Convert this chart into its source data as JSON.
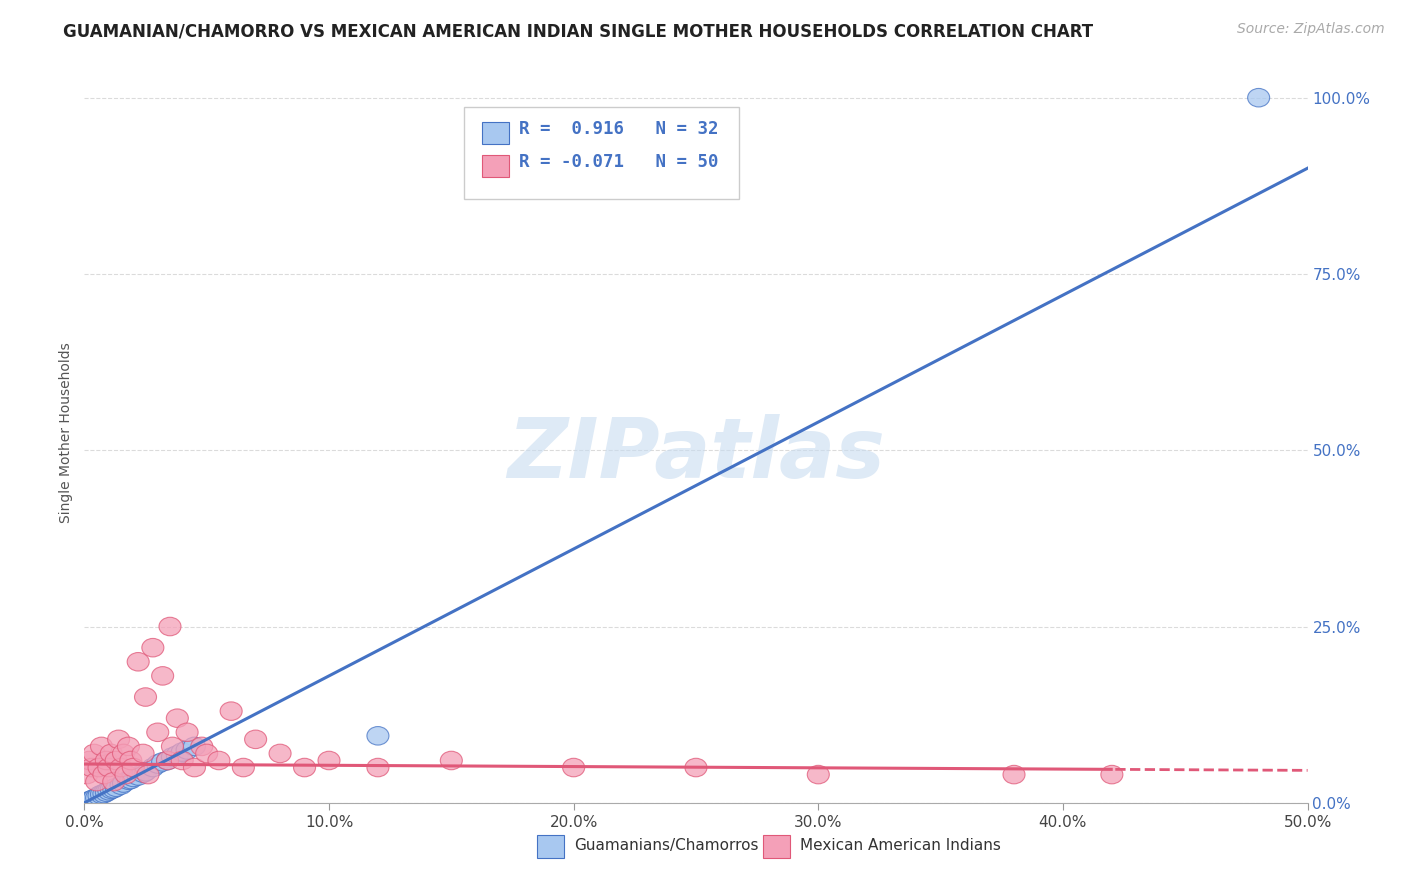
{
  "title": "GUAMANIAN/CHAMORRO VS MEXICAN AMERICAN INDIAN SINGLE MOTHER HOUSEHOLDS CORRELATION CHART",
  "source": "Source: ZipAtlas.com",
  "ylabel": "Single Mother Households",
  "x_min": 0.0,
  "x_max": 0.5,
  "y_min": 0.0,
  "y_max": 1.05,
  "x_ticks": [
    0.0,
    0.1,
    0.2,
    0.3,
    0.4,
    0.5
  ],
  "x_tick_labels": [
    "0.0%",
    "10.0%",
    "20.0%",
    "30.0%",
    "40.0%",
    "50.0%"
  ],
  "y_ticks_right": [
    0.0,
    0.25,
    0.5,
    0.75,
    1.0
  ],
  "y_tick_labels_right": [
    "0.0%",
    "25.0%",
    "50.0%",
    "75.0%",
    "100.0%"
  ],
  "legend_line1": "R =  0.916   N = 32",
  "legend_line2": "R = -0.071   N = 50",
  "blue_color": "#A8C8F0",
  "pink_color": "#F4A0B8",
  "blue_line_color": "#4472C4",
  "pink_line_color": "#E05878",
  "watermark": "ZIPatlas",
  "label1": "Guamanians/Chamorros",
  "label2": "Mexican American Indians",
  "blue_slope": 1.8,
  "blue_intercept": 0.0,
  "pink_slope": -0.018,
  "pink_intercept": 0.055,
  "blue_points_x": [
    0.001,
    0.002,
    0.003,
    0.004,
    0.005,
    0.006,
    0.007,
    0.008,
    0.009,
    0.01,
    0.011,
    0.012,
    0.013,
    0.015,
    0.016,
    0.018,
    0.019,
    0.02,
    0.022,
    0.024,
    0.025,
    0.028,
    0.03,
    0.032,
    0.034,
    0.036,
    0.038,
    0.04,
    0.042,
    0.045,
    0.12,
    0.48
  ],
  "blue_points_y": [
    0.001,
    0.003,
    0.004,
    0.006,
    0.007,
    0.01,
    0.012,
    0.013,
    0.015,
    0.017,
    0.019,
    0.02,
    0.022,
    0.025,
    0.028,
    0.032,
    0.033,
    0.036,
    0.038,
    0.042,
    0.044,
    0.05,
    0.055,
    0.058,
    0.06,
    0.065,
    0.068,
    0.072,
    0.075,
    0.08,
    0.095,
    1.0
  ],
  "pink_points_x": [
    0.001,
    0.002,
    0.003,
    0.004,
    0.005,
    0.006,
    0.007,
    0.008,
    0.009,
    0.01,
    0.011,
    0.012,
    0.013,
    0.014,
    0.015,
    0.016,
    0.017,
    0.018,
    0.019,
    0.02,
    0.022,
    0.024,
    0.025,
    0.026,
    0.028,
    0.03,
    0.032,
    0.034,
    0.035,
    0.036,
    0.038,
    0.04,
    0.042,
    0.045,
    0.048,
    0.05,
    0.055,
    0.06,
    0.065,
    0.07,
    0.08,
    0.09,
    0.1,
    0.12,
    0.15,
    0.2,
    0.25,
    0.3,
    0.38,
    0.42
  ],
  "pink_points_y": [
    0.04,
    0.06,
    0.05,
    0.07,
    0.03,
    0.05,
    0.08,
    0.04,
    0.06,
    0.05,
    0.07,
    0.03,
    0.06,
    0.09,
    0.05,
    0.07,
    0.04,
    0.08,
    0.06,
    0.05,
    0.2,
    0.07,
    0.15,
    0.04,
    0.22,
    0.1,
    0.18,
    0.06,
    0.25,
    0.08,
    0.12,
    0.06,
    0.1,
    0.05,
    0.08,
    0.07,
    0.06,
    0.13,
    0.05,
    0.09,
    0.07,
    0.05,
    0.06,
    0.05,
    0.06,
    0.05,
    0.05,
    0.04,
    0.04,
    0.04
  ],
  "grid_color": "#CCCCCC",
  "grid_style": "--",
  "title_fontsize": 12,
  "source_fontsize": 10,
  "tick_fontsize": 11
}
